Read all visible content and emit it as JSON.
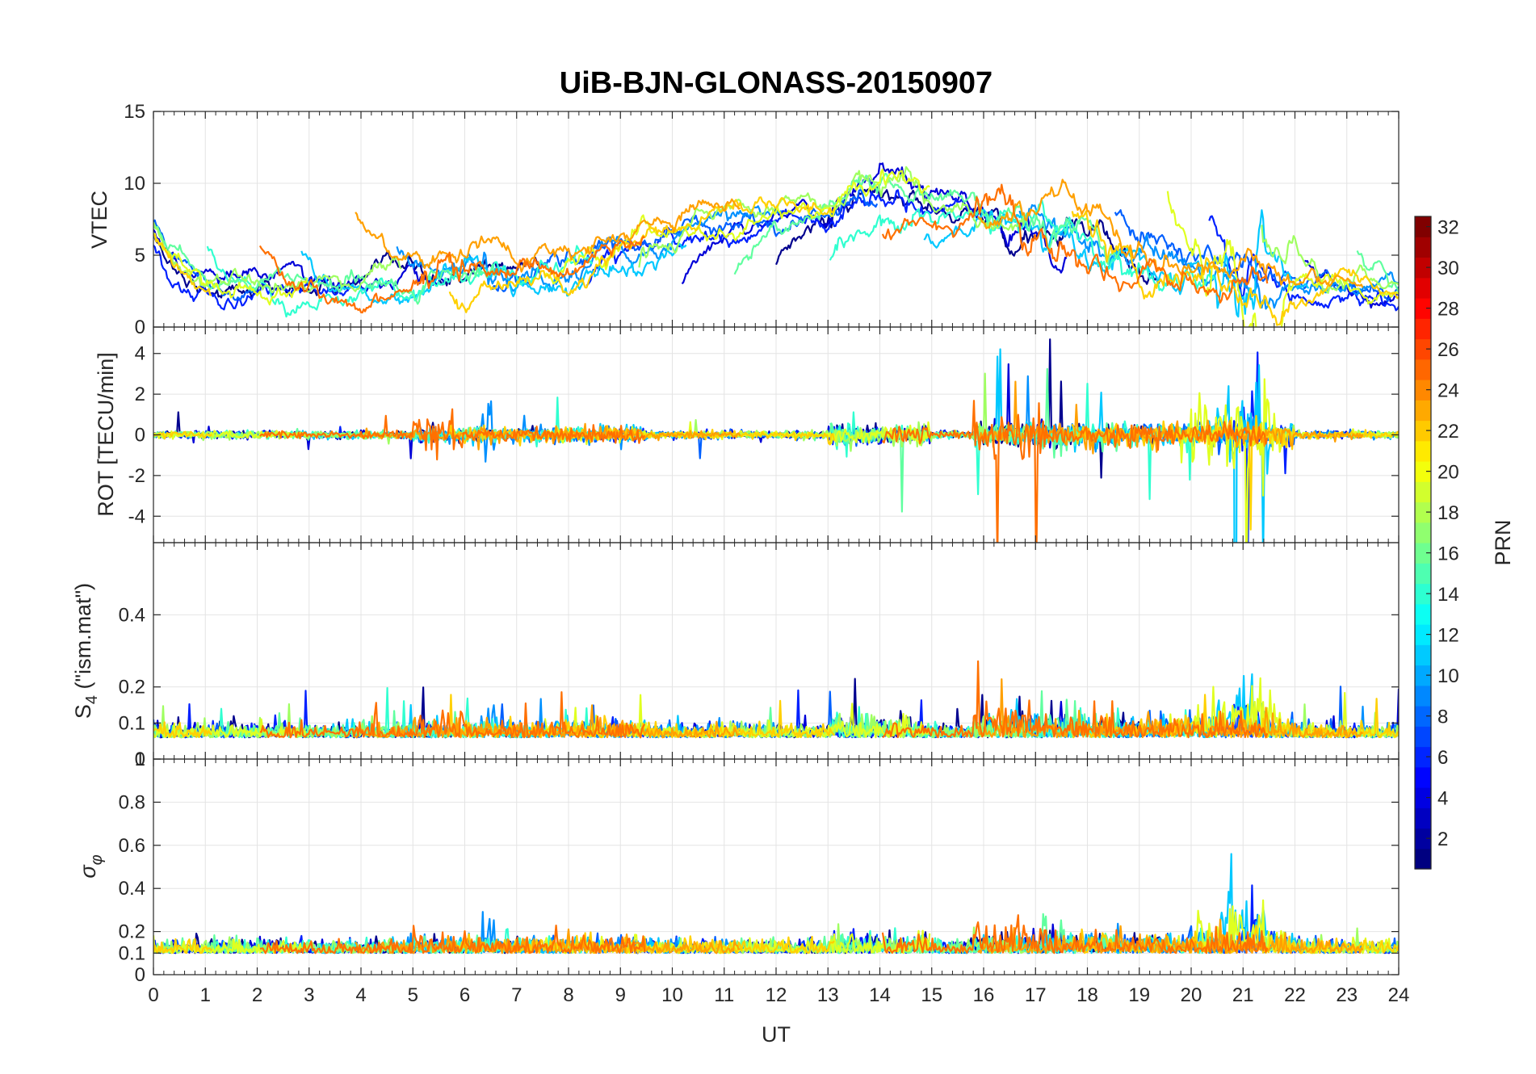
{
  "chart_data": {
    "type": "line",
    "title": "UiB-BJN-GLONASS-20150907",
    "xlabel": "UT",
    "x_range": [
      0,
      24
    ],
    "x_ticks": [
      "0",
      "1",
      "2",
      "3",
      "4",
      "5",
      "6",
      "7",
      "8",
      "9",
      "10",
      "11",
      "12",
      "13",
      "14",
      "15",
      "16",
      "17",
      "18",
      "19",
      "20",
      "21",
      "22",
      "23",
      "24"
    ],
    "panels": [
      {
        "id": "vtec",
        "ylabel": "VTEC",
        "ylim": [
          0,
          15
        ],
        "y_ticks": [
          0,
          5,
          10,
          15
        ],
        "y_tick_labels": [
          "0",
          "5",
          "10",
          "15"
        ]
      },
      {
        "id": "rot",
        "ylabel": "ROT [TECU/min]",
        "ylim": [
          -5.3,
          5.3
        ],
        "y_ticks": [
          -4,
          -2,
          0,
          2,
          4
        ],
        "y_tick_labels": [
          "-4",
          "-2",
          "0",
          "2",
          "4"
        ]
      },
      {
        "id": "s4",
        "ylabel_main": "S",
        "ylabel_sub": "4",
        "ylabel_rest": " (\"ism.mat\")",
        "ylim": [
          0,
          0.6
        ],
        "y_ticks": [
          0,
          0.1,
          0.2,
          0.4
        ],
        "y_tick_labels": [
          "0",
          "0.1",
          "0.2",
          "0.4"
        ]
      },
      {
        "id": "sigma",
        "ylabel_main": "σ",
        "ylabel_sub": "φ",
        "ylim": [
          0,
          1
        ],
        "y_ticks": [
          0,
          0.1,
          0.2,
          0.4,
          0.6,
          0.8,
          1
        ],
        "y_tick_labels": [
          "0",
          "0.1",
          "0.2",
          "0.4",
          "0.6",
          "0.8",
          "1"
        ]
      }
    ],
    "colorbar": {
      "label": "PRN",
      "range": [
        1,
        32
      ],
      "ticks": [
        2,
        4,
        6,
        8,
        10,
        12,
        14,
        16,
        18,
        20,
        22,
        24,
        26,
        28,
        30,
        32
      ],
      "tick_labels": [
        "2",
        "4",
        "6",
        "8",
        "10",
        "12",
        "14",
        "16",
        "18",
        "20",
        "22",
        "24",
        "26",
        "28",
        "30",
        "32"
      ],
      "colormap": "jet"
    },
    "series": [
      {
        "prn": 1,
        "color": "#00008f",
        "vtec_base": 6.5,
        "activity": [
          [
            19.5,
            20.0,
            4.0
          ]
        ]
      },
      {
        "prn": 3,
        "color": "#0000d8",
        "vtec_base": 7.0,
        "activity": [
          [
            8.5,
            9.5,
            1.5
          ],
          [
            18.5,
            19.8,
            2.5
          ]
        ]
      },
      {
        "prn": 5,
        "color": "#0020ff",
        "vtec_base": 6.0,
        "activity": [
          [
            16.3,
            16.5,
            2.0
          ],
          [
            20.8,
            21.3,
            2.0
          ]
        ]
      },
      {
        "prn": 7,
        "color": "#0060ff",
        "vtec_base": 7.5,
        "activity": [
          [
            16.0,
            17.5,
            2.5
          ]
        ]
      },
      {
        "prn": 9,
        "color": "#0090ff",
        "vtec_base": 6.5,
        "activity": [
          [
            6.3,
            6.6,
            3.5
          ]
        ]
      },
      {
        "prn": 11,
        "color": "#00c8ff",
        "vtec_base": 5.5,
        "activity": [
          [
            20.5,
            21.5,
            4.0
          ]
        ]
      },
      {
        "prn": 13,
        "color": "#30ffd0",
        "vtec_base": 6.0,
        "activity": [
          [
            13.0,
            13.5,
            1.0
          ]
        ]
      },
      {
        "prn": 15,
        "color": "#60ff9f",
        "vtec_base": 7.0,
        "activity": [
          [
            17.0,
            17.5,
            2.0
          ]
        ]
      },
      {
        "prn": 17,
        "color": "#9fff60",
        "vtec_base": 7.5,
        "activity": [
          [
            6.5,
            7.2,
            1.5
          ]
        ]
      },
      {
        "prn": 19,
        "color": "#e0ff20",
        "vtec_base": 7.0,
        "activity": [
          [
            20.0,
            21.8,
            2.5
          ]
        ]
      },
      {
        "prn": 21,
        "color": "#ffd000",
        "vtec_base": 6.5,
        "activity": [
          [
            13.4,
            13.8,
            4.0
          ]
        ]
      },
      {
        "prn": 23,
        "color": "#ffa000",
        "vtec_base": 8.0,
        "activity": [
          [
            13.3,
            14.6,
            2.5
          ]
        ]
      },
      {
        "prn": 25,
        "color": "#ff7000",
        "vtec_base": 6.0,
        "activity": [
          [
            5.0,
            6.0,
            1.2
          ],
          [
            15.8,
            17.2,
            1.5
          ]
        ]
      }
    ]
  }
}
